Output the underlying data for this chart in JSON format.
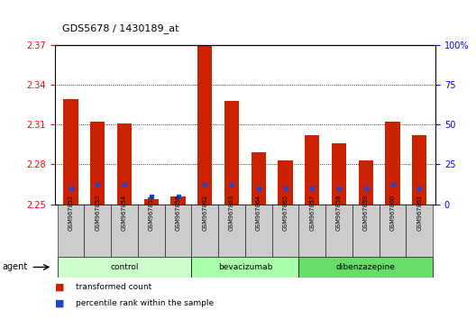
{
  "title": "GDS5678 / 1430189_at",
  "samples": [
    "GSM967852",
    "GSM967853",
    "GSM967854",
    "GSM967855",
    "GSM967856",
    "GSM967862",
    "GSM967863",
    "GSM967864",
    "GSM967865",
    "GSM967857",
    "GSM967858",
    "GSM967859",
    "GSM967860",
    "GSM967861"
  ],
  "transformed_count": [
    2.329,
    2.312,
    2.311,
    2.254,
    2.256,
    2.37,
    2.328,
    2.289,
    2.283,
    2.302,
    2.296,
    2.283,
    2.312,
    2.302
  ],
  "percentile_rank": [
    10,
    12,
    12,
    5,
    5,
    12,
    12,
    10,
    10,
    10,
    10,
    10,
    12,
    10
  ],
  "ymin": 2.25,
  "ymax": 2.37,
  "y2min": 0,
  "y2max": 100,
  "yticks_left": [
    2.25,
    2.28,
    2.31,
    2.34,
    2.37
  ],
  "yticks_right": [
    0,
    25,
    50,
    75,
    100
  ],
  "grid_lines": [
    2.28,
    2.31,
    2.34
  ],
  "bar_color": "#cc2200",
  "blue_color": "#2244cc",
  "bar_width": 0.55,
  "group_labels": [
    "control",
    "bevacizumab",
    "dibenzazepine"
  ],
  "group_indices": [
    [
      0,
      1,
      2,
      3,
      4
    ],
    [
      5,
      6,
      7,
      8
    ],
    [
      9,
      10,
      11,
      12,
      13
    ]
  ],
  "group_colors": [
    "#ccffcc",
    "#aaffaa",
    "#66dd66"
  ],
  "tick_bg_color": "#cccccc",
  "bg_color": "#ffffff",
  "legend_items": [
    {
      "color": "#cc2200",
      "label": "transformed count"
    },
    {
      "color": "#2244cc",
      "label": "percentile rank within the sample"
    }
  ]
}
